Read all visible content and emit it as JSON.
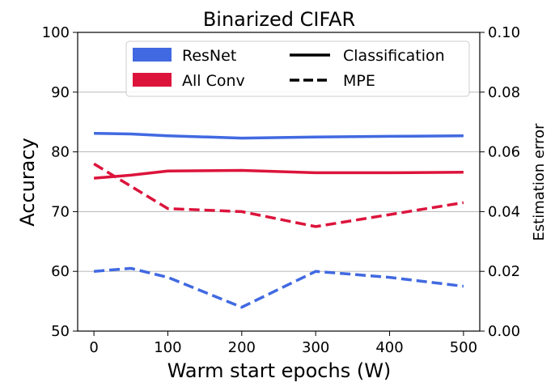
{
  "chart_data": {
    "type": "line",
    "title": "Binarized CIFAR",
    "xlabel": "Warm start epochs (W)",
    "ylabel": "Accuracy",
    "y2label": "Estimation error",
    "xlim": [
      -22,
      522
    ],
    "ylim": [
      50,
      100
    ],
    "y2lim": [
      0.0,
      0.1
    ],
    "xticks": [
      0,
      100,
      200,
      300,
      400,
      500
    ],
    "xtick_labels": [
      "0",
      "100",
      "200",
      "300",
      "400",
      "500"
    ],
    "yticks": [
      50,
      60,
      70,
      80,
      90,
      100
    ],
    "ytick_labels": [
      "50",
      "60",
      "70",
      "80",
      "90",
      "100"
    ],
    "y2ticks": [
      0.0,
      0.02,
      0.04,
      0.06,
      0.08,
      0.1
    ],
    "y2tick_labels": [
      "0.00",
      "0.02",
      "0.04",
      "0.06",
      "0.08",
      "0.10"
    ],
    "grid": "horizontal",
    "legend_placement": "top",
    "legend": {
      "colors": [
        {
          "label": "ResNet",
          "color": "#4169e1"
        },
        {
          "label": "All Conv",
          "color": "#dc143c"
        }
      ],
      "styles": [
        {
          "label": "Classification",
          "dash": "solid"
        },
        {
          "label": "MPE",
          "dash": "dashed"
        }
      ]
    },
    "series": [
      {
        "model": "ResNet",
        "metric": "Classification",
        "axis": "left",
        "color": "#4169e1",
        "dash": "solid",
        "x": [
          0,
          50,
          100,
          200,
          300,
          400,
          500
        ],
        "y": [
          83.1,
          83.0,
          82.7,
          82.3,
          82.5,
          82.6,
          82.7
        ]
      },
      {
        "model": "All Conv",
        "metric": "Classification",
        "axis": "left",
        "color": "#dc143c",
        "dash": "solid",
        "x": [
          0,
          50,
          100,
          200,
          300,
          400,
          500
        ],
        "y": [
          75.6,
          76.1,
          76.8,
          76.9,
          76.5,
          76.5,
          76.6
        ]
      },
      {
        "model": "All Conv",
        "metric": "MPE",
        "axis": "right",
        "color": "#dc143c",
        "dash": "dashed",
        "x": [
          0,
          100,
          200,
          300,
          400,
          500
        ],
        "y": [
          0.056,
          0.041,
          0.04,
          0.035,
          0.039,
          0.043
        ]
      },
      {
        "model": "ResNet",
        "metric": "MPE",
        "axis": "right",
        "color": "#4169e1",
        "dash": "dashed",
        "x": [
          0,
          50,
          100,
          200,
          300,
          400,
          500
        ],
        "y": [
          0.02,
          0.021,
          0.018,
          0.008,
          0.02,
          0.018,
          0.015
        ]
      }
    ]
  }
}
